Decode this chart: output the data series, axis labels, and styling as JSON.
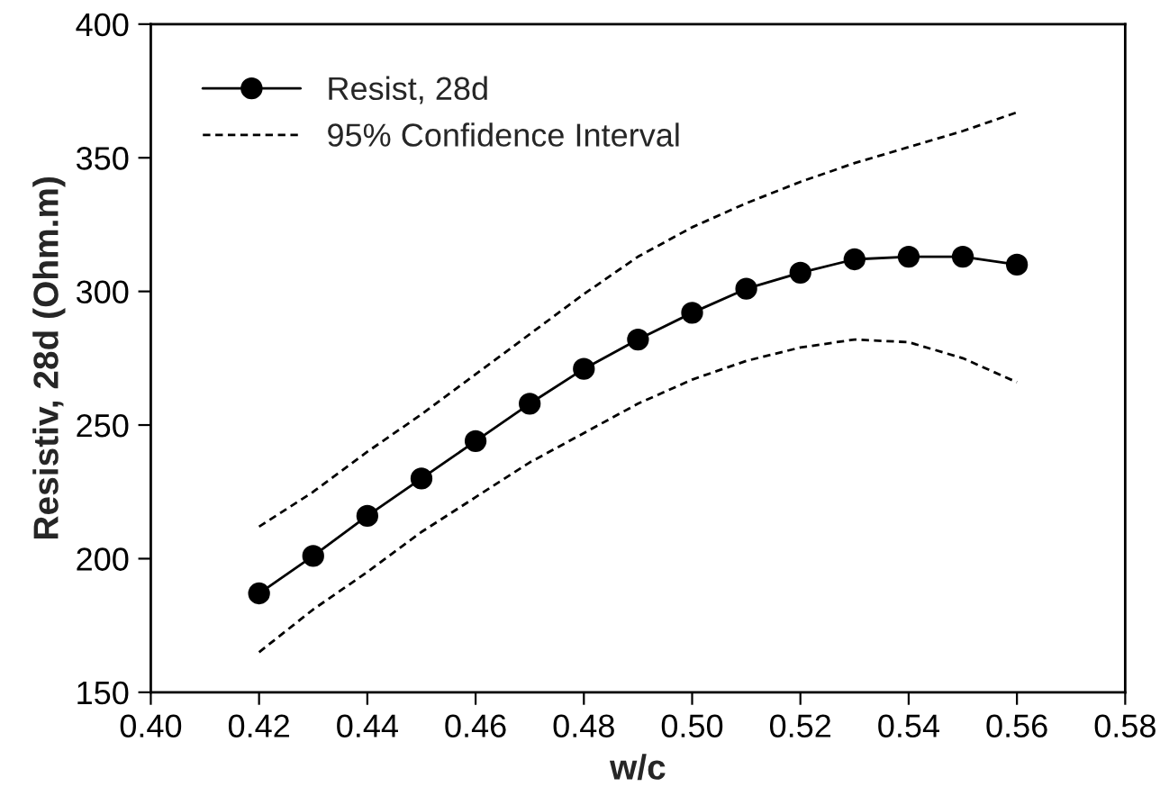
{
  "chart_data": {
    "type": "line",
    "xlabel": "w/c",
    "ylabel": "Resistiv, 28d (Ohm.m)",
    "x": [
      0.42,
      0.43,
      0.44,
      0.45,
      0.46,
      0.47,
      0.48,
      0.49,
      0.5,
      0.51,
      0.52,
      0.53,
      0.54,
      0.55,
      0.56
    ],
    "series": [
      {
        "name": "Resist, 28d",
        "color": "#000000",
        "marker": "circle",
        "line_style": "solid",
        "values": [
          187,
          201,
          216,
          230,
          244,
          258,
          271,
          282,
          292,
          301,
          307,
          312,
          313,
          313,
          310
        ]
      },
      {
        "name": "95% Confidence Interval",
        "color": "#000000",
        "marker": "none",
        "line_style": "dashed",
        "values": [
          212,
          225,
          240,
          254,
          269,
          284,
          299,
          313,
          324,
          333,
          341,
          348,
          354,
          360,
          367
        ]
      },
      {
        "color": "#000000",
        "marker": "none",
        "line_style": "dashed",
        "values": [
          165,
          181,
          195,
          210,
          223,
          236,
          247,
          258,
          267,
          274,
          279,
          282,
          281,
          275,
          266
        ]
      }
    ],
    "xlim": [
      0.4,
      0.58
    ],
    "xticks": [
      {
        "value": 0.4,
        "label": "0.40"
      },
      {
        "value": 0.42,
        "label": "0.42"
      },
      {
        "value": 0.44,
        "label": "0.44"
      },
      {
        "value": 0.46,
        "label": "0.46"
      },
      {
        "value": 0.48,
        "label": "0.48"
      },
      {
        "value": 0.5,
        "label": "0.50"
      },
      {
        "value": 0.52,
        "label": "0.52"
      },
      {
        "value": 0.54,
        "label": "0.54"
      },
      {
        "value": 0.56,
        "label": "0.56"
      },
      {
        "value": 0.58,
        "label": "0.58"
      }
    ],
    "ylim": [
      150,
      400
    ],
    "yticks": [
      150,
      200,
      250,
      300,
      350,
      400
    ],
    "grid": false,
    "legend": "top left"
  }
}
